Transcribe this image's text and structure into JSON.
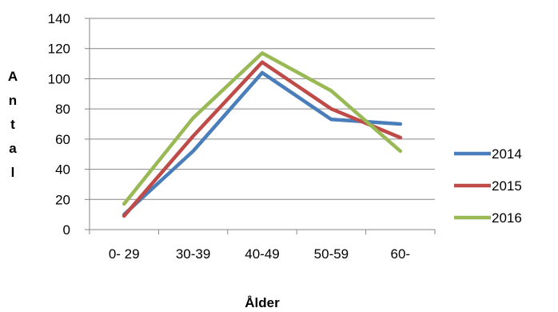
{
  "chart_data": {
    "type": "line",
    "title": "",
    "xlabel": "Ålder",
    "ylabel": "Antal",
    "categories": [
      "0- 29",
      "30-39",
      "40-49",
      "50-59",
      "60-"
    ],
    "ylim": [
      0,
      140
    ],
    "yticks": [
      0,
      20,
      40,
      60,
      80,
      100,
      120,
      140
    ],
    "grid": "horizontal",
    "legend": "right",
    "series": [
      {
        "name": "2014",
        "color": "#4a7ebb",
        "values": [
          10,
          52,
          104,
          73,
          70
        ]
      },
      {
        "name": "2015",
        "color": "#be4b48",
        "values": [
          9,
          62,
          111,
          80,
          61
        ]
      },
      {
        "name": "2016",
        "color": "#98b954",
        "values": [
          17,
          74,
          117,
          92,
          52
        ]
      }
    ]
  }
}
